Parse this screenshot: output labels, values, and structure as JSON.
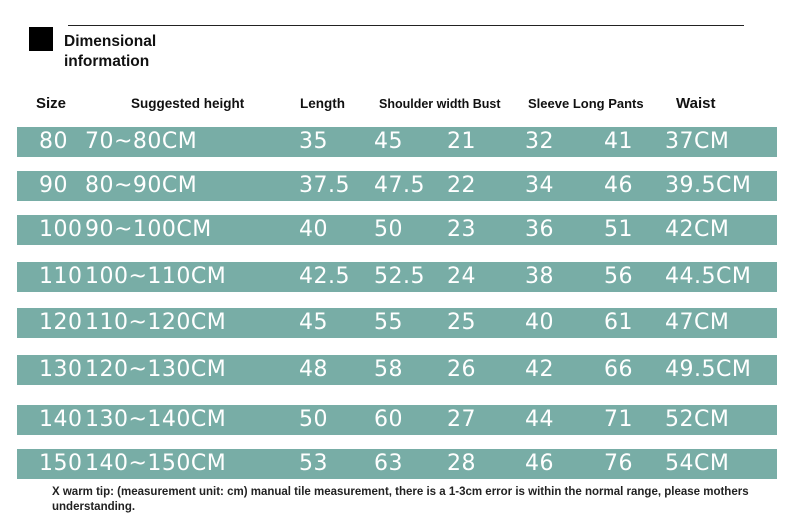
{
  "heading": {
    "line1": "Dimensional",
    "line2": "information"
  },
  "columns": [
    "Size",
    "Suggested height",
    "Length",
    "Shoulder width Bust",
    "Sleeve Long Pants",
    "Waist"
  ],
  "rows": [
    {
      "size": "80",
      "height": "70~80CM",
      "length": "35",
      "shoulder": "45",
      "bust": "21",
      "sleeve": "32",
      "pants": "41",
      "waist": "37CM"
    },
    {
      "size": "90",
      "height": "80~90CM",
      "length": "37.5",
      "shoulder": "47.5",
      "bust": "22",
      "sleeve": "34",
      "pants": "46",
      "waist": "39.5CM"
    },
    {
      "size": "100",
      "height": "90~100CM",
      "length": "40",
      "shoulder": "50",
      "bust": "23",
      "sleeve": "36",
      "pants": "51",
      "waist": "42CM"
    },
    {
      "size": "110",
      "height": "100~110CM",
      "length": "42.5",
      "shoulder": "52.5",
      "bust": "24",
      "sleeve": "38",
      "pants": "56",
      "waist": "44.5CM"
    },
    {
      "size": "120",
      "height": "110~120CM",
      "length": "45",
      "shoulder": "55",
      "bust": "25",
      "sleeve": "40",
      "pants": "61",
      "waist": "47CM"
    },
    {
      "size": "130",
      "height": "120~130CM",
      "length": "48",
      "shoulder": "58",
      "bust": "26",
      "sleeve": "42",
      "pants": "66",
      "waist": "49.5CM"
    },
    {
      "size": "140",
      "height": "130~140CM",
      "length": "50",
      "shoulder": "60",
      "bust": "27",
      "sleeve": "44",
      "pants": "71",
      "waist": "52CM"
    },
    {
      "size": "150",
      "height": "140~150CM",
      "length": "53",
      "shoulder": "63",
      "bust": "28",
      "sleeve": "46",
      "pants": "76",
      "waist": "54CM"
    }
  ],
  "tip": "X warm tip: (measurement unit: cm) manual tile measurement, there is a 1-3cm error is within the normal range, please mothers understanding.",
  "colors": {
    "row_bg": "#78ada6",
    "row_text": "#ffffff"
  }
}
